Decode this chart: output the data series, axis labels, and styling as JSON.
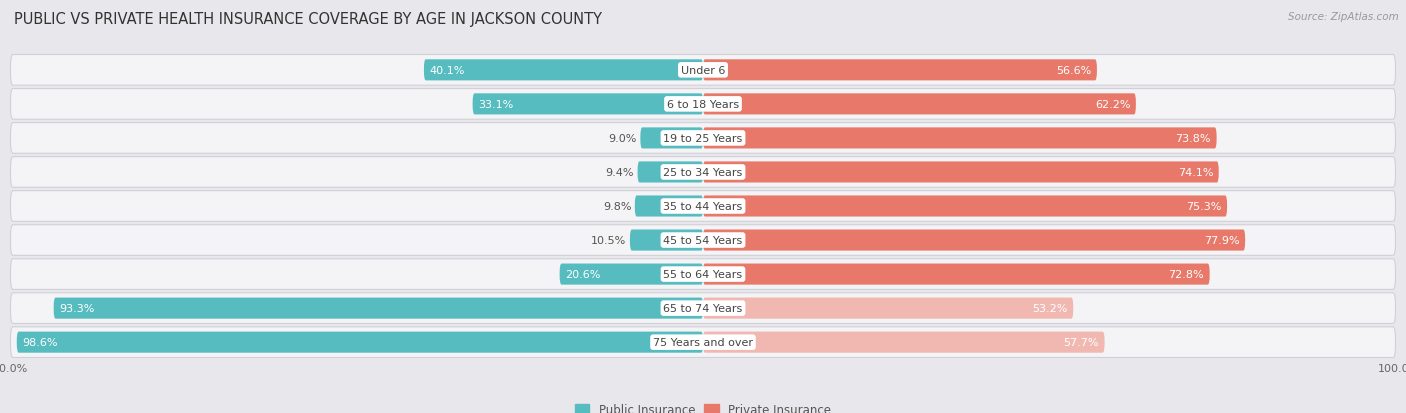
{
  "title": "PUBLIC VS PRIVATE HEALTH INSURANCE COVERAGE BY AGE IN JACKSON COUNTY",
  "source": "Source: ZipAtlas.com",
  "categories": [
    "Under 6",
    "6 to 18 Years",
    "19 to 25 Years",
    "25 to 34 Years",
    "35 to 44 Years",
    "45 to 54 Years",
    "55 to 64 Years",
    "65 to 74 Years",
    "75 Years and over"
  ],
  "public_values": [
    40.1,
    33.1,
    9.0,
    9.4,
    9.8,
    10.5,
    20.6,
    93.3,
    98.6
  ],
  "private_values": [
    56.6,
    62.2,
    73.8,
    74.1,
    75.3,
    77.9,
    72.8,
    53.2,
    57.7
  ],
  "public_color": "#56bcc0",
  "public_color_light": "#a8dfe1",
  "private_color": "#e8796a",
  "private_color_light": "#f0b8b0",
  "bg_color": "#e8e8ec",
  "card_color": "#f4f4f6",
  "bar_height": 0.62,
  "title_fontsize": 10.5,
  "label_fontsize": 8.0,
  "value_fontsize": 8.0,
  "source_fontsize": 7.5,
  "xlim_left": -100,
  "xlim_right": 100,
  "legend_public": "Public Insurance",
  "legend_private": "Private Insurance",
  "inside_label_threshold": 15
}
